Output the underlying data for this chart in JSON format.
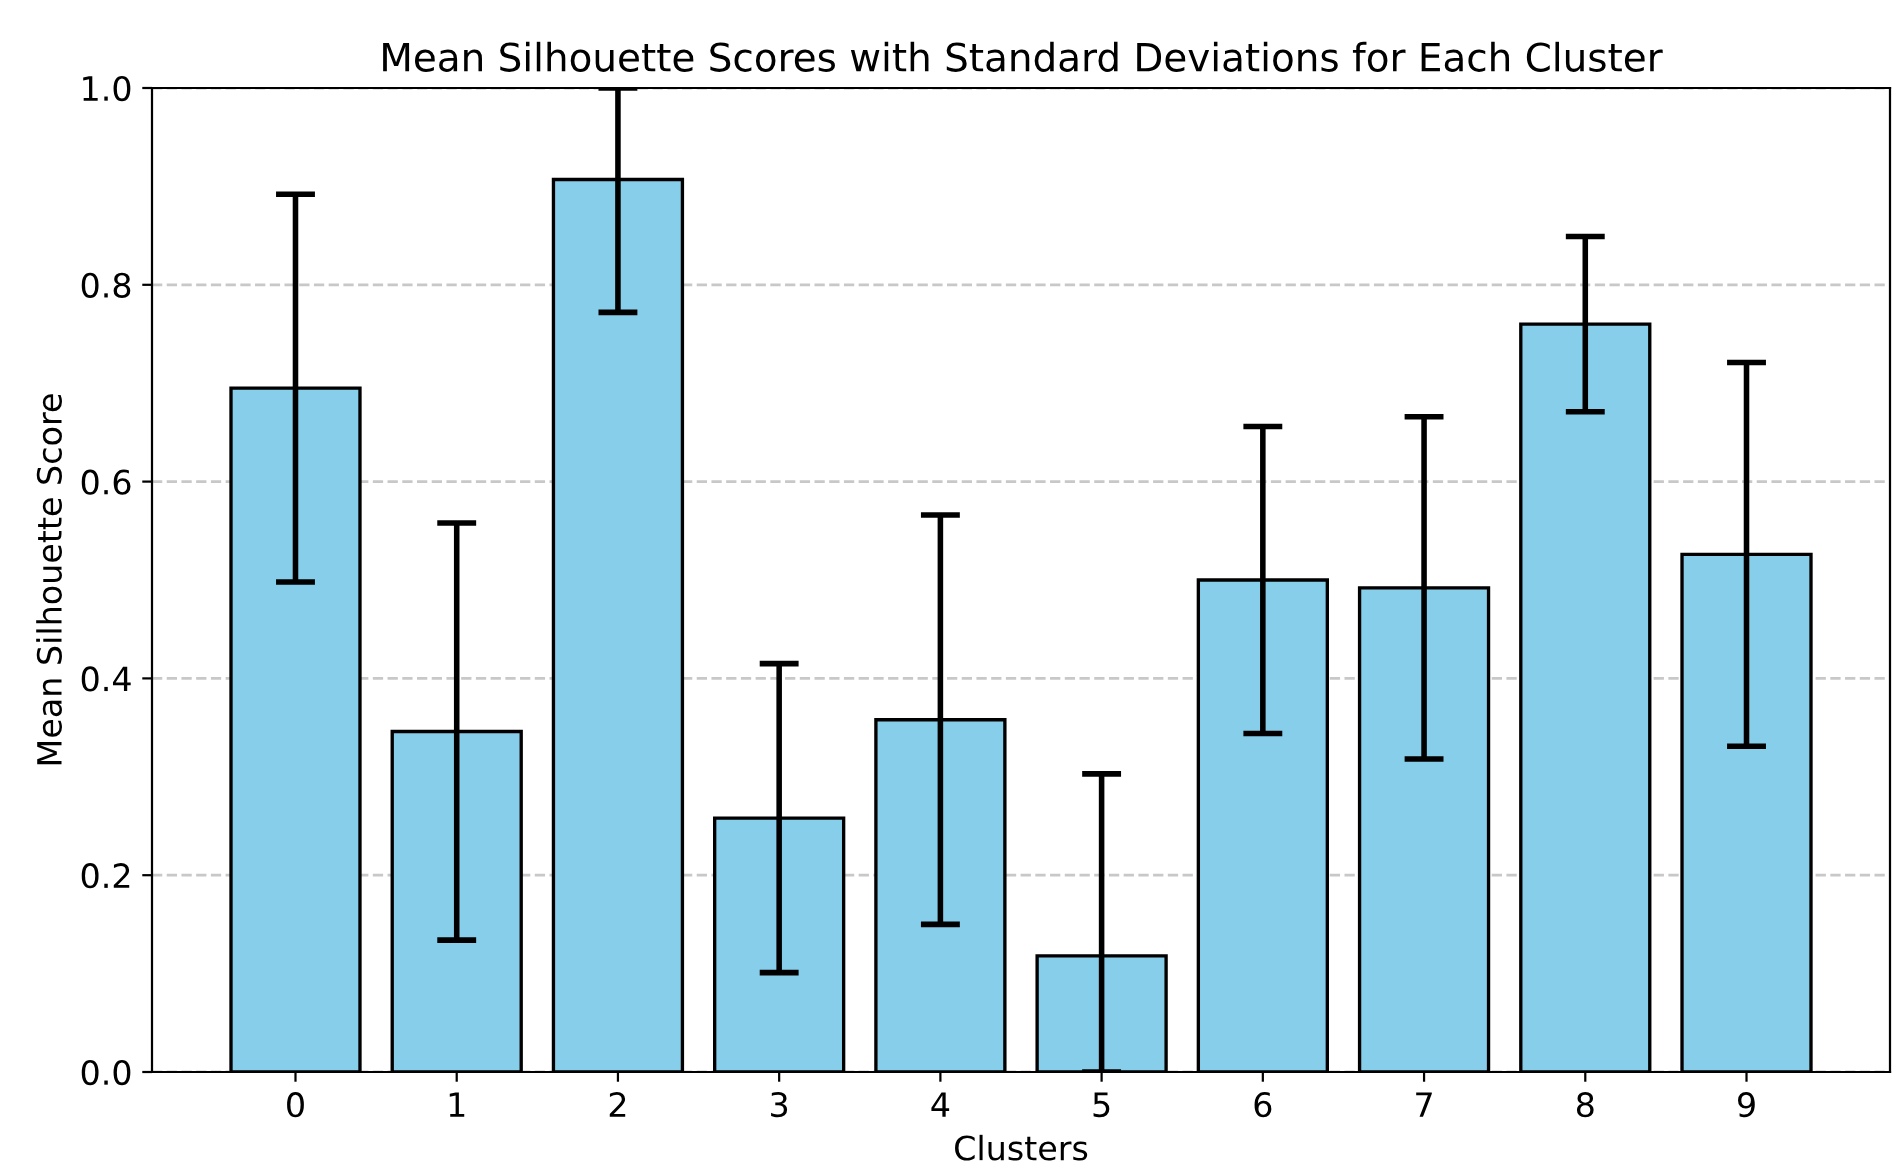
{
  "chart_data": {
    "type": "bar",
    "title": "Mean Silhouette Scores with Standard Deviations for Each Cluster",
    "xlabel": "Clusters",
    "ylabel": "Mean Silhouette Score",
    "categories": [
      "0",
      "1",
      "2",
      "3",
      "4",
      "5",
      "6",
      "7",
      "8",
      "9"
    ],
    "values": [
      0.695,
      0.346,
      0.907,
      0.258,
      0.358,
      0.118,
      0.5,
      0.492,
      0.76,
      0.526
    ],
    "errors": [
      0.197,
      0.212,
      [
        0.772,
        1.0
      ],
      0.157,
      0.208,
      [
        0,
        0.303
      ],
      0.156,
      0.174,
      0.089,
      0.195
    ],
    "color": "#87ceeb",
    "ylim": [
      0,
      1
    ],
    "yticks": [
      {
        "value": 0,
        "label": "0.0"
      },
      {
        "value": 0.2,
        "label": "0.2"
      },
      {
        "value": 0.4,
        "label": "0.4"
      },
      {
        "value": 0.6,
        "label": "0.6"
      },
      {
        "value": 0.8,
        "label": "0.8"
      },
      {
        "value": 1,
        "label": "1.0"
      }
    ],
    "grid": "y"
  }
}
